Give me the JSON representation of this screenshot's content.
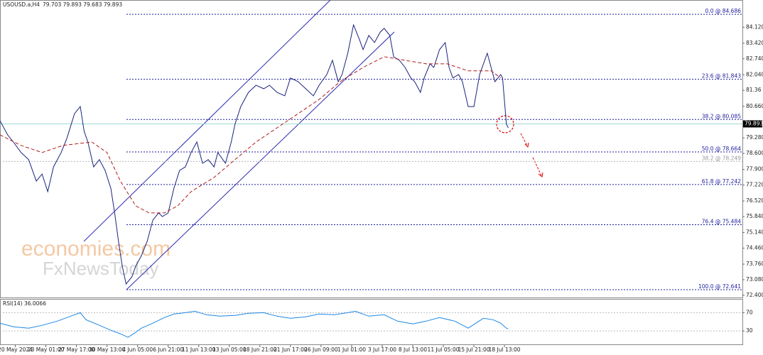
{
  "chart_data": [
    {
      "type": "line",
      "title": "USOUSD.a,H4",
      "subtitle": "79.703 79.893 79.683 79.893",
      "watermark": [
        "economies.com",
        "FxNewsToday"
      ],
      "xlim": [
        0,
        388.5
      ],
      "xticks": [
        {
          "value": 8,
          "label": "20 May 2024"
        },
        {
          "value": 24,
          "label": "23 May 01:00"
        },
        {
          "value": 40,
          "label": "27 May 17:00"
        },
        {
          "value": 56,
          "label": "30 May 13:00"
        },
        {
          "value": 72,
          "label": "4 Jun 05:00"
        },
        {
          "value": 88,
          "label": "6 Jun 21:00"
        },
        {
          "value": 104,
          "label": "11 Jun 13:00"
        },
        {
          "value": 120,
          "label": "13 Jun 05:00"
        },
        {
          "value": 136,
          "label": "18 Jun 21:00"
        },
        {
          "value": 152,
          "label": "21 Jun 17:00"
        },
        {
          "value": 168,
          "label": "26 Jun 09:00"
        },
        {
          "value": 184,
          "label": "1 Jul 01:00"
        },
        {
          "value": 200,
          "label": "3 Jul 17:00"
        },
        {
          "value": 216,
          "label": "8 Jul 13:00"
        },
        {
          "value": 232,
          "label": "11 Jul 05:00"
        },
        {
          "value": 248,
          "label": "15 Jul 21:00"
        },
        {
          "value": 264,
          "label": "18 Jul 13:00"
        }
      ],
      "ylim": [
        72.27,
        85.31
      ],
      "yticks": [
        {
          "value": 84.12,
          "label": "84.120"
        },
        {
          "value": 83.42,
          "label": "83.420"
        },
        {
          "value": 82.74,
          "label": "82.740"
        },
        {
          "value": 82.04,
          "label": "82.040"
        },
        81.36,
        {
          "value": 80.66,
          "label": "80.660"
        },
        {
          "value": 79.28,
          "label": "79.280"
        },
        {
          "value": 78.6,
          "label": "78.600"
        },
        {
          "value": 77.9,
          "label": "77.900"
        },
        {
          "value": 77.22,
          "label": "77.220"
        },
        {
          "value": 76.52,
          "label": "76.520"
        },
        {
          "value": 75.84,
          "label": "75.840"
        },
        {
          "value": 75.14,
          "label": "75.140"
        },
        {
          "value": 74.46,
          "label": "74.460"
        },
        {
          "value": 73.76,
          "label": "73.760"
        },
        {
          "value": 73.08,
          "label": "73.080"
        },
        {
          "value": 72.4,
          "label": "72.400"
        }
      ],
      "current_price": 79.893,
      "fib_levels": [
        {
          "label": "0.0 @ 84.686",
          "value": 84.686,
          "color": "#1c1c9c"
        },
        {
          "label": "23.6 @ 81.843",
          "value": 81.843,
          "color": "#1c1c9c"
        },
        {
          "label": "38.2 @ 80.085",
          "value": 80.085,
          "color": "#1c1c9c"
        },
        {
          "label": "50.0 @ 78.664",
          "value": 78.664,
          "color": "#1c1c9c"
        },
        {
          "label": "38.2 @ 78.249",
          "value": 78.249,
          "color": "#b5b5b5"
        },
        {
          "label": "61.8 @ 77.242",
          "value": 77.242,
          "color": "#1c1c9c"
        },
        {
          "label": "76.4 @ 75.484",
          "value": 75.484,
          "color": "#1c1c9c"
        },
        {
          "label": "100.0 @ 72.641",
          "value": 72.641,
          "color": "#1c1c9c"
        }
      ],
      "series": [
        {
          "color": "#1a237e",
          "style": "solid",
          "x": [
            0,
            4,
            7,
            11,
            15,
            19,
            22,
            25,
            28,
            32,
            35,
            39,
            42,
            44,
            46,
            49,
            52,
            55,
            58,
            60,
            62,
            64,
            66,
            69,
            71,
            74,
            77,
            80,
            83,
            85,
            88,
            91,
            94,
            97,
            100,
            103,
            106,
            109,
            112,
            114,
            118,
            121,
            123,
            126,
            130,
            134,
            138,
            141,
            145,
            149,
            152,
            156,
            160,
            164,
            167,
            171,
            174,
            177,
            179,
            182,
            185,
            188,
            190,
            193,
            196,
            199,
            201,
            204,
            206,
            209,
            212,
            215,
            217,
            220,
            222,
            225,
            227,
            230,
            233,
            235,
            237,
            240,
            242,
            245,
            248,
            251,
            253,
            255,
            257,
            259,
            262,
            263,
            265,
            266
          ],
          "values": [
            80.03,
            79.41,
            79.1,
            78.64,
            78.33,
            77.39,
            77.7,
            76.93,
            78.01,
            78.64,
            79.26,
            80.34,
            80.65,
            79.57,
            79.1,
            78.01,
            78.33,
            77.86,
            77.08,
            76.0,
            74.75,
            73.67,
            72.89,
            73.2,
            73.67,
            74.13,
            74.75,
            75.69,
            76.0,
            75.84,
            76.0,
            77.08,
            77.86,
            78.01,
            78.64,
            79.1,
            78.17,
            78.33,
            78.01,
            78.64,
            78.17,
            79.1,
            79.88,
            80.65,
            81.27,
            81.58,
            81.43,
            81.58,
            81.27,
            81.12,
            81.9,
            81.74,
            81.43,
            81.12,
            81.58,
            82.05,
            82.67,
            81.74,
            82.05,
            82.98,
            84.22,
            83.6,
            83.14,
            83.76,
            83.45,
            83.91,
            84.07,
            83.76,
            82.83,
            82.67,
            82.36,
            81.9,
            81.74,
            81.27,
            81.9,
            82.52,
            82.36,
            83.14,
            83.45,
            82.36,
            81.9,
            82.05,
            81.74,
            80.65,
            80.65,
            82.05,
            82.52,
            82.98,
            82.36,
            81.74,
            82.05,
            81.9,
            79.88,
            79.72
          ]
        },
        {
          "color": "#b01c1c",
          "style": "dashed",
          "x": [
            0,
            11,
            22,
            33,
            48,
            56,
            63,
            71,
            78,
            86,
            93,
            100,
            112,
            123,
            134,
            145,
            156,
            167,
            178,
            190,
            201,
            212,
            223,
            234,
            245,
            257,
            262
          ],
          "values": [
            79.41,
            78.95,
            78.64,
            78.95,
            79.1,
            78.64,
            77.39,
            76.31,
            76.0,
            76.0,
            76.31,
            76.93,
            77.55,
            78.33,
            79.1,
            79.72,
            80.34,
            80.96,
            81.74,
            82.36,
            82.83,
            82.67,
            82.52,
            82.52,
            82.21,
            82.21,
            81.9
          ]
        }
      ]
    },
    {
      "type": "line",
      "title": "RSI(14) 36.0066",
      "ylim": [
        0,
        100
      ],
      "yticks": [
        70,
        30
      ],
      "series": [
        {
          "color": "#1e88e5",
          "style": "solid",
          "x": [
            0,
            7,
            15,
            22,
            30,
            37,
            42,
            45,
            52,
            58,
            63,
            67,
            71,
            74,
            80,
            86,
            91,
            97,
            102,
            108,
            115,
            123,
            130,
            138,
            145,
            152,
            160,
            167,
            175,
            182,
            186,
            193,
            201,
            208,
            216,
            223,
            230,
            238,
            245,
            253,
            258,
            262,
            265,
            266
          ],
          "values": [
            46.9,
            39.2,
            36.2,
            42.3,
            51.5,
            62.3,
            70.0,
            54.6,
            42.3,
            31.5,
            23.8,
            16.2,
            26.9,
            36.2,
            46.9,
            59.2,
            66.9,
            70.0,
            73.1,
            65.4,
            62.3,
            63.8,
            68.5,
            70.0,
            62.3,
            57.7,
            60.8,
            66.9,
            65.4,
            70.0,
            73.1,
            62.3,
            65.4,
            51.5,
            45.4,
            51.5,
            59.2,
            51.5,
            36.2,
            57.7,
            54.6,
            46.9,
            36.2,
            34.6
          ]
        }
      ]
    }
  ]
}
